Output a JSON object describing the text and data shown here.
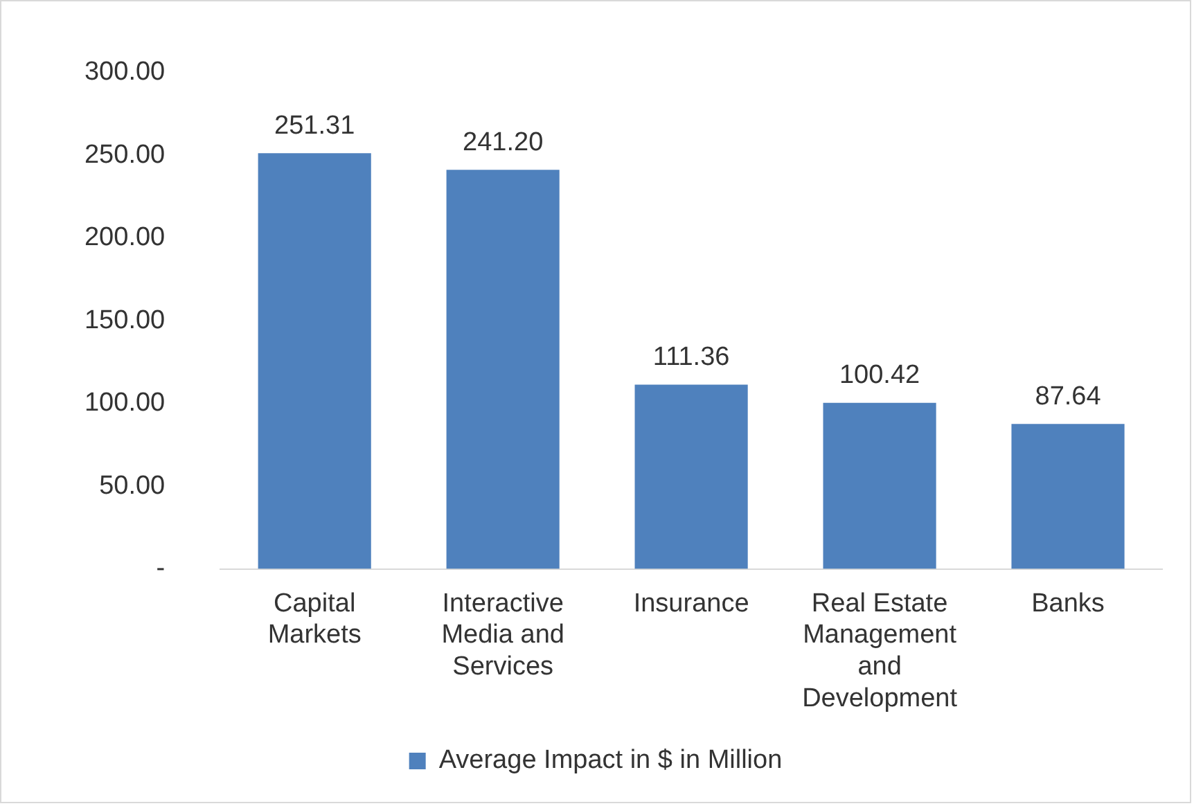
{
  "chart_data": {
    "type": "bar",
    "categories": [
      "Capital Markets",
      "Interactive Media and Services",
      "Insurance",
      "Real Estate Management and Development",
      "Banks"
    ],
    "series": [
      {
        "name": "Average Impact in $ in Million",
        "color": "#4f81bd",
        "values": [
          251.31,
          241.2,
          111.36,
          100.42,
          87.64
        ]
      }
    ],
    "value_labels": [
      "251.31",
      "241.20",
      "111.36",
      "100.42",
      "87.64"
    ],
    "ylim": [
      0,
      300
    ],
    "yticks": [
      {
        "value": 0,
        "label": "-"
      },
      {
        "value": 50,
        "label": "50.00"
      },
      {
        "value": 100,
        "label": "100.00"
      },
      {
        "value": 150,
        "label": "150.00"
      },
      {
        "value": 200,
        "label": "200.00"
      },
      {
        "value": 250,
        "label": "250.00"
      },
      {
        "value": 300,
        "label": "300.00"
      }
    ],
    "grid": false,
    "legend": "bottom"
  }
}
